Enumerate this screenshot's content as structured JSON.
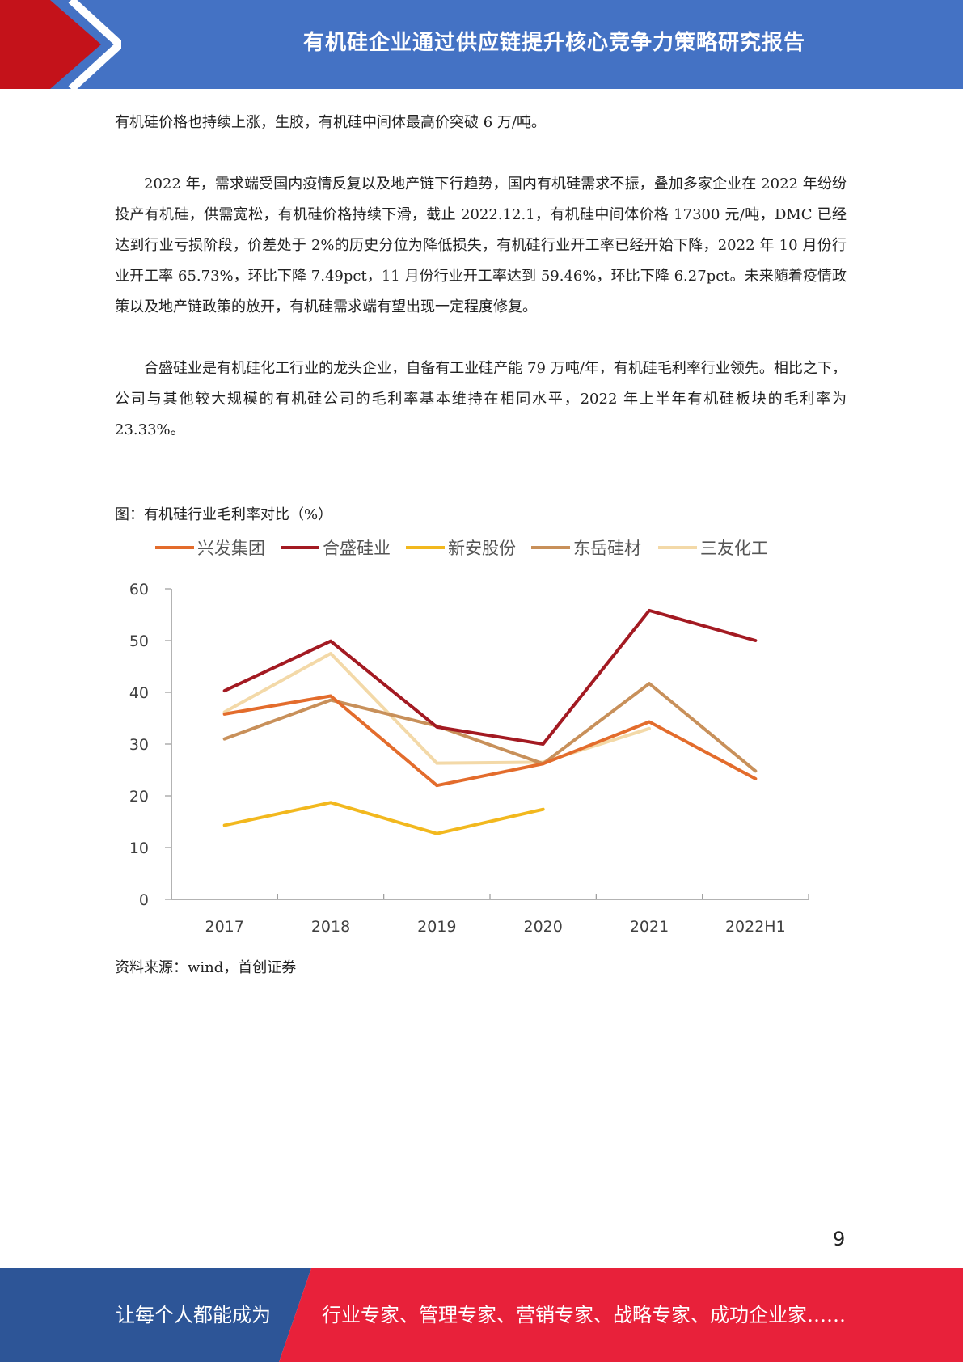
{
  "header": {
    "title": "有机硅企业通过供应链提升核心竞争力策略研究报告",
    "colors": {
      "band": "#4472c4",
      "arrow": "#c4121a"
    }
  },
  "paragraphs": [
    "有机硅价格也持续上涨，生胶，有机硅中间体最高价突破 6 万/吨。",
    "2022 年，需求端受国内疫情反复以及地产链下行趋势，国内有机硅需求不振，叠加多家企业在 2022 年纷纷投产有机硅，供需宽松，有机硅价格持续下滑，截止 2022.12.1，有机硅中间体价格 17300 元/吨，DMC 已经达到行业亏损阶段，价差处于 2%的历史分位为降低损失，有机硅行业开工率已经开始下降，2022 年 10 月份行业开工率 65.73%，环比下降 7.49pct，11 月份行业开工率达到 59.46%，环比下降 6.27pct。未来随着疫情政策以及地产链政策的放开，有机硅需求端有望出现一定程度修复。",
    "合盛硅业是有机硅化工行业的龙头企业，自备有工业硅产能 79 万吨/年，有机硅毛利率行业领先。相比之下，公司与其他较大规模的有机硅公司的毛利率基本维持在相同水平，2022 年上半年有机硅板块的毛利率为 23.33%。"
  ],
  "figure": {
    "caption": "图：有机硅行业毛利率对比（%）",
    "source": "资料来源：wind，首创证券"
  },
  "chart_data": {
    "type": "line",
    "categories": [
      "2017",
      "2018",
      "2019",
      "2020",
      "2021",
      "2022H1"
    ],
    "ylim": [
      0,
      60
    ],
    "yticks": [
      "0",
      "10",
      "20",
      "30",
      "40",
      "50",
      "60"
    ],
    "legend_position": "top",
    "grid": false,
    "series": [
      {
        "name": "兴发集团",
        "color": "#e36c2c",
        "values": [
          35.8,
          39.3,
          22.0,
          26.2,
          34.3,
          23.3
        ]
      },
      {
        "name": "合盛硅业",
        "color": "#a31a22",
        "values": [
          40.3,
          49.9,
          33.3,
          30.0,
          55.8,
          50.0
        ]
      },
      {
        "name": "新安股份",
        "color": "#f2b81e",
        "values": [
          14.3,
          18.7,
          12.7,
          17.4,
          null,
          null
        ]
      },
      {
        "name": "东岳硅材",
        "color": "#c8905a",
        "values": [
          31.0,
          38.5,
          33.5,
          26.2,
          41.7,
          24.8
        ]
      },
      {
        "name": "三友化工",
        "color": "#f3d9a8",
        "values": [
          36.2,
          47.5,
          26.3,
          26.5,
          33.0,
          null
        ]
      }
    ]
  },
  "page_number": "9",
  "footer": {
    "left_text": "让每个人都能成为",
    "right_text": "行业专家、管理专家、营销专家、战略专家、成功企业家……",
    "colors": {
      "left": "#2d5597",
      "right": "#e8213a"
    }
  }
}
